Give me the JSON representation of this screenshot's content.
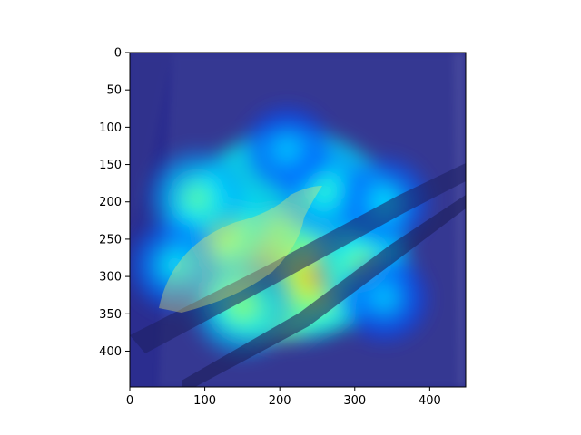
{
  "chart_data": {
    "type": "heatmap",
    "title": "",
    "xlabel": "",
    "ylabel": "",
    "xlim": [
      0,
      448
    ],
    "ylim": [
      448,
      0
    ],
    "x_ticks": [
      0,
      100,
      200,
      300,
      400
    ],
    "y_ticks": [
      0,
      50,
      100,
      150,
      200,
      250,
      300,
      350,
      400
    ],
    "x_tick_labels": [
      "0",
      "100",
      "200",
      "300",
      "400"
    ],
    "y_tick_labels": [
      "0",
      "50",
      "100",
      "150",
      "200",
      "250",
      "300",
      "350",
      "400"
    ],
    "image_content": "attention heatmap overlay on photo of a bird perched on a branch against tree bark",
    "colormap": "jet",
    "background_color": "#2b2d8f",
    "hotspots": [
      {
        "x": 185,
        "y": 305,
        "intensity": 1.0
      },
      {
        "x": 250,
        "y": 300,
        "intensity": 0.75
      },
      {
        "x": 120,
        "y": 240,
        "intensity": 0.62
      },
      {
        "x": 310,
        "y": 285,
        "intensity": 0.55
      },
      {
        "x": 150,
        "y": 340,
        "intensity": 0.55
      },
      {
        "x": 90,
        "y": 195,
        "intensity": 0.5
      },
      {
        "x": 260,
        "y": 185,
        "intensity": 0.45
      },
      {
        "x": 340,
        "y": 200,
        "intensity": 0.38
      },
      {
        "x": 210,
        "y": 130,
        "intensity": 0.35
      },
      {
        "x": 340,
        "y": 330,
        "intensity": 0.35
      },
      {
        "x": 60,
        "y": 285,
        "intensity": 0.4
      }
    ]
  }
}
